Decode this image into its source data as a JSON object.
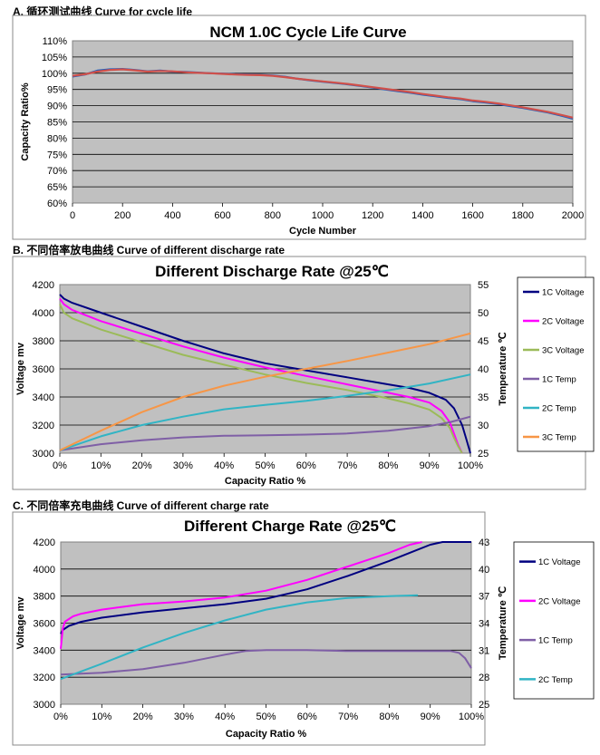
{
  "sections": {
    "a": "A.  循环测试曲线  Curve for cycle life",
    "b": "B.  不同倍率放电曲线  Curve of different discharge rate",
    "c": "C.  不同倍率充电曲线  Curve of different charge rate"
  },
  "chart_data": [
    {
      "type": "line",
      "title": "NCM 1.0C Cycle Life Curve",
      "xlabel": "Cycle Number",
      "ylabel": "Capacity Ratio%",
      "xlim": [
        0,
        2000
      ],
      "ylim": [
        60,
        110
      ],
      "xticks": [
        "0",
        "200",
        "400",
        "600",
        "800",
        "1000",
        "1200",
        "1400",
        "1600",
        "1800",
        "2000"
      ],
      "yticks": [
        "60%",
        "65%",
        "70%",
        "75%",
        "80%",
        "85%",
        "90%",
        "95%",
        "100%",
        "105%",
        "110%"
      ],
      "grid": true,
      "series": [
        {
          "color": "#1f5fbf",
          "x": [
            0,
            50,
            100,
            150,
            200,
            250,
            300,
            350,
            400,
            450,
            500,
            550,
            600,
            650,
            700,
            750,
            800,
            850,
            900,
            950,
            1000,
            1050,
            1100,
            1150,
            1200,
            1250,
            1300,
            1350,
            1400,
            1450,
            1500,
            1550,
            1600,
            1650,
            1700,
            1750,
            1800,
            1850,
            1900,
            1950,
            2000
          ],
          "y": [
            99.0,
            99.6,
            100.8,
            101.2,
            101.3,
            101.0,
            100.6,
            100.8,
            100.5,
            100.4,
            100.2,
            100.0,
            99.9,
            99.7,
            99.6,
            99.5,
            99.3,
            98.9,
            98.3,
            97.8,
            97.4,
            97.0,
            96.6,
            96.1,
            95.6,
            95.0,
            94.5,
            94.0,
            93.4,
            92.9,
            92.4,
            92.0,
            91.4,
            91.0,
            90.5,
            89.9,
            89.3,
            88.6,
            87.9,
            87.0,
            86.0
          ]
        },
        {
          "color": "#d0504a",
          "x": [
            0,
            50,
            100,
            150,
            200,
            250,
            300,
            350,
            400,
            450,
            500,
            550,
            600,
            650,
            700,
            750,
            800,
            850,
            900,
            950,
            1000,
            1050,
            1100,
            1150,
            1200,
            1250,
            1300,
            1350,
            1400,
            1450,
            1500,
            1550,
            1600,
            1650,
            1700,
            1750,
            1800,
            1850,
            1900,
            1950,
            2000
          ],
          "y": [
            99.2,
            99.7,
            100.5,
            101.0,
            101.2,
            100.9,
            100.5,
            100.7,
            100.6,
            100.3,
            100.1,
            100.0,
            99.8,
            99.6,
            99.5,
            99.4,
            99.2,
            98.8,
            98.3,
            97.9,
            97.5,
            97.1,
            96.7,
            96.2,
            95.7,
            95.2,
            94.7,
            94.2,
            93.6,
            93.1,
            92.6,
            92.2,
            91.6,
            91.2,
            90.7,
            90.1,
            89.5,
            88.8,
            88.1,
            87.2,
            86.3
          ]
        }
      ]
    },
    {
      "type": "line",
      "title": "Different Discharge Rate @25℃",
      "xlabel": "Capacity Ratio  %",
      "ylabel": "Voltage  mv",
      "y2label": "Temperature  ℃",
      "xlim": [
        0,
        100
      ],
      "ylim": [
        3000,
        4200
      ],
      "y2lim": [
        25,
        55
      ],
      "xticks": [
        "0%",
        "10%",
        "20%",
        "30%",
        "40%",
        "50%",
        "60%",
        "70%",
        "80%",
        "90%",
        "100%"
      ],
      "yticks": [
        "3000",
        "3200",
        "3400",
        "3600",
        "3800",
        "4000",
        "4200"
      ],
      "y2ticks": [
        "25",
        "30",
        "35",
        "40",
        "45",
        "50",
        "55"
      ],
      "grid": true,
      "legend": "right",
      "series": [
        {
          "name": "1C Voltage",
          "axis": "left",
          "color": "#000080",
          "x": [
            0,
            1,
            3,
            10,
            20,
            30,
            40,
            50,
            60,
            70,
            80,
            85,
            90,
            94,
            96,
            98,
            99,
            100
          ],
          "y": [
            4130,
            4100,
            4070,
            4000,
            3900,
            3800,
            3710,
            3640,
            3590,
            3540,
            3490,
            3465,
            3430,
            3380,
            3320,
            3200,
            3100,
            3000
          ]
        },
        {
          "name": "2C Voltage",
          "axis": "left",
          "color": "#ff00ff",
          "x": [
            0,
            1,
            3,
            10,
            20,
            30,
            40,
            50,
            60,
            70,
            80,
            85,
            90,
            93,
            95,
            96,
            97,
            98
          ],
          "y": [
            4100,
            4060,
            4020,
            3940,
            3850,
            3760,
            3680,
            3610,
            3550,
            3490,
            3430,
            3400,
            3360,
            3300,
            3220,
            3140,
            3060,
            3000
          ]
        },
        {
          "name": "3C Voltage",
          "axis": "left",
          "color": "#9bbb59",
          "x": [
            0,
            1,
            3,
            10,
            20,
            30,
            40,
            50,
            60,
            70,
            80,
            85,
            90,
            93,
            95,
            96,
            97,
            98
          ],
          "y": [
            4060,
            4000,
            3960,
            3880,
            3790,
            3700,
            3630,
            3560,
            3500,
            3450,
            3390,
            3355,
            3310,
            3250,
            3180,
            3110,
            3050,
            3000
          ]
        },
        {
          "name": "1C Temp",
          "axis": "right",
          "color": "#7f5fa6",
          "x": [
            0,
            10,
            20,
            30,
            40,
            50,
            60,
            70,
            80,
            90,
            95,
            100
          ],
          "y": [
            25.5,
            26.6,
            27.3,
            27.8,
            28.1,
            28.2,
            28.3,
            28.5,
            29.0,
            29.8,
            30.5,
            31.5
          ]
        },
        {
          "name": "2C Temp",
          "axis": "right",
          "color": "#31b4c4",
          "x": [
            0,
            10,
            20,
            30,
            40,
            50,
            60,
            70,
            80,
            90,
            100
          ],
          "y": [
            25.5,
            28.0,
            30.0,
            31.5,
            32.8,
            33.6,
            34.3,
            35.2,
            36.2,
            37.4,
            39.0
          ]
        },
        {
          "name": "3C Temp",
          "axis": "right",
          "color": "#f79646",
          "x": [
            0,
            10,
            20,
            30,
            40,
            50,
            60,
            70,
            80,
            90,
            100
          ],
          "y": [
            25.5,
            29.0,
            32.3,
            35.0,
            37.0,
            38.6,
            40.0,
            41.4,
            42.9,
            44.4,
            46.3
          ]
        }
      ]
    },
    {
      "type": "line",
      "title": "Different Charge Rate @25℃",
      "xlabel": "Capacity Ratio  %",
      "ylabel": "Voltage  mv",
      "y2label": "Temperature  ℃",
      "xlim": [
        0,
        100
      ],
      "ylim": [
        3000,
        4200
      ],
      "y2lim": [
        25,
        43
      ],
      "xticks": [
        "0%",
        "10%",
        "20%",
        "30%",
        "40%",
        "50%",
        "60%",
        "70%",
        "80%",
        "90%",
        "100%"
      ],
      "yticks": [
        "3000",
        "3200",
        "3400",
        "3600",
        "3800",
        "4000",
        "4200"
      ],
      "y2ticks": [
        "25",
        "28",
        "31",
        "34",
        "37",
        "40",
        "43"
      ],
      "grid": true,
      "legend": "right",
      "series": [
        {
          "name": "1C Voltage",
          "axis": "left",
          "color": "#000080",
          "x": [
            0,
            0.5,
            2,
            5,
            10,
            20,
            30,
            40,
            50,
            60,
            70,
            80,
            85,
            90,
            93,
            100
          ],
          "y": [
            3520,
            3550,
            3580,
            3610,
            3640,
            3680,
            3710,
            3740,
            3780,
            3850,
            3950,
            4060,
            4120,
            4180,
            4200,
            4200
          ]
        },
        {
          "name": "2C Voltage",
          "axis": "left",
          "color": "#ff00ff",
          "x": [
            0,
            0.5,
            1,
            3,
            5,
            10,
            20,
            30,
            40,
            50,
            60,
            70,
            80,
            85,
            88
          ],
          "y": [
            3410,
            3560,
            3610,
            3650,
            3670,
            3700,
            3740,
            3760,
            3790,
            3840,
            3920,
            4020,
            4120,
            4180,
            4200
          ]
        },
        {
          "name": "1C Temp",
          "axis": "right",
          "color": "#7f5fa6",
          "x": [
            0,
            10,
            20,
            30,
            40,
            45,
            50,
            60,
            70,
            80,
            90,
            95,
            97,
            98.5,
            100
          ],
          "y": [
            28.3,
            28.5,
            28.9,
            29.6,
            30.5,
            30.9,
            31.0,
            31.0,
            30.9,
            30.9,
            30.9,
            30.9,
            30.7,
            30.1,
            29.0
          ]
        },
        {
          "name": "2C Temp",
          "axis": "right",
          "color": "#31b4c4",
          "x": [
            0,
            10,
            20,
            30,
            40,
            50,
            60,
            70,
            80,
            87
          ],
          "y": [
            27.8,
            29.5,
            31.3,
            32.9,
            34.3,
            35.5,
            36.3,
            36.8,
            37.0,
            37.1
          ]
        }
      ]
    }
  ]
}
